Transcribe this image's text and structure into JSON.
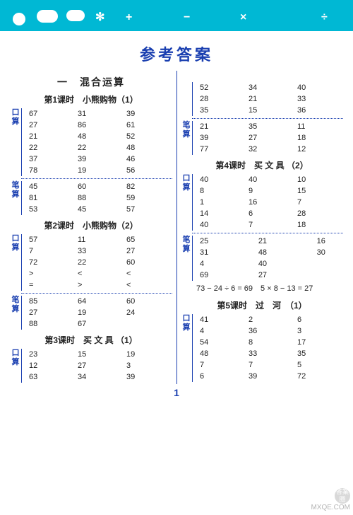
{
  "topbar": {
    "bg": "#00b8d4"
  },
  "title": "参考答案",
  "page_number": "1",
  "watermark": {
    "badge_top": "答案",
    "badge_bot": "圈",
    "site": "MXQE.COM"
  },
  "left": {
    "section": "一　混合运算",
    "l1": {
      "title": "第1课时　小熊购物（1）",
      "kou": [
        [
          "67",
          "31",
          "39"
        ],
        [
          "27",
          "86",
          "61"
        ],
        [
          "21",
          "48",
          "52"
        ],
        [
          "22",
          "22",
          "48"
        ],
        [
          "37",
          "39",
          "46"
        ],
        [
          "78",
          "19",
          "56"
        ]
      ],
      "bi": [
        [
          "45",
          "60",
          "82"
        ],
        [
          "81",
          "88",
          "59"
        ],
        [
          "53",
          "45",
          "57"
        ]
      ]
    },
    "l2": {
      "title": "第2课时　小熊购物（2）",
      "kou": [
        [
          "57",
          "11",
          "65"
        ],
        [
          "7",
          "33",
          "27"
        ],
        [
          "72",
          "22",
          "60"
        ],
        [
          ">",
          "<",
          "<"
        ],
        [
          "=",
          ">",
          "<"
        ]
      ],
      "bi": [
        [
          "85",
          "64",
          "60"
        ],
        [
          "27",
          "19",
          "24"
        ],
        [
          "88",
          "67",
          ""
        ]
      ]
    },
    "l3": {
      "title": "第3课时　买 文 具 （1）",
      "kou": [
        [
          "23",
          "15",
          "19"
        ],
        [
          "12",
          "27",
          "3"
        ],
        [
          "63",
          "34",
          "39"
        ]
      ]
    }
  },
  "right": {
    "cont": {
      "kou": [
        [
          "52",
          "34",
          "40"
        ],
        [
          "28",
          "21",
          "33"
        ],
        [
          "35",
          "15",
          "36"
        ]
      ],
      "bi": [
        [
          "21",
          "35",
          "11"
        ],
        [
          "39",
          "27",
          "18"
        ],
        [
          "77",
          "32",
          "12"
        ]
      ]
    },
    "l4": {
      "title": "第4课时　买 文 具 （2）",
      "kou": [
        [
          "40",
          "40",
          "10"
        ],
        [
          "8",
          "9",
          "15"
        ],
        [
          "1",
          "16",
          "7"
        ],
        [
          "14",
          "6",
          "28"
        ],
        [
          "40",
          "7",
          "18"
        ]
      ],
      "bi": [
        [
          "25",
          "",
          "21",
          "",
          "16"
        ],
        [
          "31",
          "",
          "48",
          "",
          "30"
        ],
        [
          "4",
          "",
          "40",
          "",
          ""
        ],
        [
          "69",
          "",
          "27",
          "",
          ""
        ]
      ],
      "eq": "73 − 24 ÷ 6 = 69　5 × 8 − 13 = 27"
    },
    "l5": {
      "title": "第5课时　过　河　（1）",
      "kou": [
        [
          "41",
          "2",
          "6"
        ],
        [
          "4",
          "36",
          "3"
        ],
        [
          "54",
          "8",
          "17"
        ],
        [
          "48",
          "33",
          "35"
        ],
        [
          "7",
          "7",
          "5"
        ],
        [
          "6",
          "39",
          "72"
        ]
      ]
    }
  }
}
